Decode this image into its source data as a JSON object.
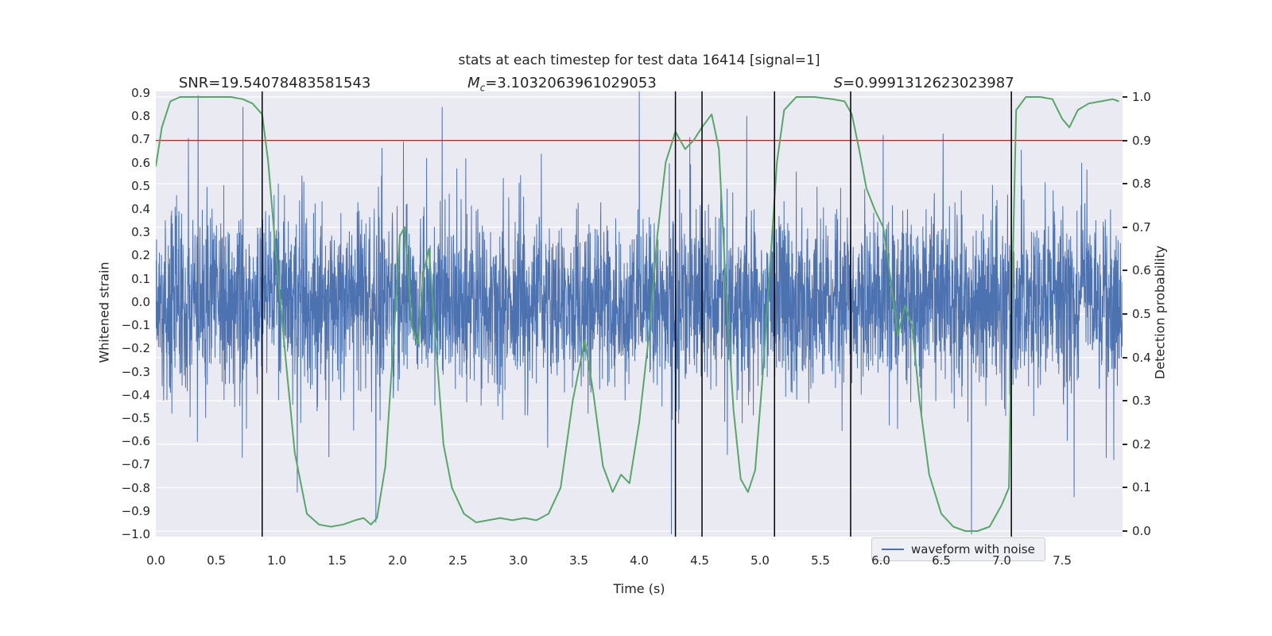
{
  "chart_data": {
    "type": "line",
    "title": "stats at each timestep for test data 16414 [signal=1]",
    "x_axis": {
      "label": "Time (s)",
      "range": [
        0,
        8
      ],
      "tick_values": [
        0,
        0.5,
        1,
        1.5,
        2,
        2.5,
        3,
        3.5,
        4,
        4.5,
        5,
        5.5,
        6,
        6.5,
        7,
        7.5
      ],
      "tick_labels": [
        "0.0",
        "0.5",
        "1.0",
        "1.5",
        "2.0",
        "2.5",
        "3.0",
        "3.5",
        "4.0",
        "4.5",
        "5.0",
        "5.5",
        "6.0",
        "6.5",
        "7.0",
        "7.5"
      ]
    },
    "left_axis": {
      "label": "Whitened strain",
      "range": [
        -1.02,
        0.92
      ],
      "tick_values": [
        0.9,
        0.8,
        0.7,
        0.6,
        0.5,
        0.4,
        0.3,
        0.2,
        0.1,
        0.0,
        -0.1,
        -0.2,
        -0.3,
        -0.4,
        -0.5,
        -0.6,
        -0.7,
        -0.8,
        -0.9,
        -1.0
      ],
      "tick_labels": [
        "0.9",
        "0.8",
        "0.7",
        "0.6",
        "0.5",
        "0.4",
        "0.3",
        "0.2",
        "0.1",
        "0.0",
        "−0.1",
        "−0.2",
        "−0.3",
        "−0.4",
        "−0.5",
        "−0.6",
        "−0.7",
        "−0.8",
        "−0.9",
        "−1.0"
      ]
    },
    "right_axis": {
      "label": "Detection probability",
      "range": [
        -0.013,
        1.013
      ],
      "tick_values": [
        1.0,
        0.9,
        0.8,
        0.7,
        0.6,
        0.5,
        0.4,
        0.3,
        0.2,
        0.1,
        0.0
      ],
      "tick_labels": [
        "1.0",
        "0.9",
        "0.8",
        "0.7",
        "0.6",
        "0.5",
        "0.4",
        "0.3",
        "0.2",
        "0.1",
        "0.0"
      ]
    },
    "annotations": [
      {
        "var": "SNR",
        "italic": false,
        "sub": "",
        "value": "=19.54078483581543",
        "t": 0.19
      },
      {
        "var": "M",
        "italic": true,
        "sub": "c",
        "value": "=3.1032063961029053",
        "t": 2.58
      },
      {
        "var": "S",
        "italic": true,
        "sub": "",
        "value": "=0.9991312623023987",
        "t": 5.61
      }
    ],
    "threshold_line": {
      "probability": 0.9,
      "color": "#b22222"
    },
    "event_lines": {
      "times": [
        0.88,
        4.3,
        4.52,
        5.12,
        5.75,
        7.08
      ],
      "color": "#000000"
    },
    "detection_series": {
      "name": "detection probability",
      "color": "#55a868",
      "points": [
        [
          0,
          0.84
        ],
        [
          0.05,
          0.93
        ],
        [
          0.12,
          0.99
        ],
        [
          0.2,
          1.0
        ],
        [
          0.35,
          1.0
        ],
        [
          0.5,
          1.0
        ],
        [
          0.62,
          1.0
        ],
        [
          0.72,
          0.995
        ],
        [
          0.8,
          0.985
        ],
        [
          0.88,
          0.96
        ],
        [
          0.93,
          0.85
        ],
        [
          1.0,
          0.62
        ],
        [
          1.08,
          0.38
        ],
        [
          1.15,
          0.18
        ],
        [
          1.25,
          0.04
        ],
        [
          1.35,
          0.015
        ],
        [
          1.45,
          0.01
        ],
        [
          1.55,
          0.015
        ],
        [
          1.65,
          0.025
        ],
        [
          1.72,
          0.03
        ],
        [
          1.78,
          0.015
        ],
        [
          1.83,
          0.03
        ],
        [
          1.9,
          0.15
        ],
        [
          1.97,
          0.45
        ],
        [
          2.02,
          0.68
        ],
        [
          2.06,
          0.7
        ],
        [
          2.12,
          0.47
        ],
        [
          2.17,
          0.43
        ],
        [
          2.22,
          0.6
        ],
        [
          2.26,
          0.65
        ],
        [
          2.32,
          0.42
        ],
        [
          2.38,
          0.2
        ],
        [
          2.45,
          0.1
        ],
        [
          2.55,
          0.04
        ],
        [
          2.65,
          0.02
        ],
        [
          2.75,
          0.025
        ],
        [
          2.85,
          0.03
        ],
        [
          2.95,
          0.025
        ],
        [
          3.05,
          0.03
        ],
        [
          3.15,
          0.025
        ],
        [
          3.25,
          0.04
        ],
        [
          3.35,
          0.1
        ],
        [
          3.45,
          0.3
        ],
        [
          3.55,
          0.44
        ],
        [
          3.62,
          0.32
        ],
        [
          3.7,
          0.15
        ],
        [
          3.78,
          0.09
        ],
        [
          3.85,
          0.13
        ],
        [
          3.92,
          0.11
        ],
        [
          4.0,
          0.25
        ],
        [
          4.08,
          0.45
        ],
        [
          4.15,
          0.68
        ],
        [
          4.22,
          0.85
        ],
        [
          4.3,
          0.92
        ],
        [
          4.38,
          0.88
        ],
        [
          4.45,
          0.9
        ],
        [
          4.52,
          0.93
        ],
        [
          4.6,
          0.96
        ],
        [
          4.66,
          0.88
        ],
        [
          4.72,
          0.55
        ],
        [
          4.78,
          0.28
        ],
        [
          4.84,
          0.12
        ],
        [
          4.9,
          0.09
        ],
        [
          4.96,
          0.14
        ],
        [
          5.02,
          0.35
        ],
        [
          5.08,
          0.6
        ],
        [
          5.14,
          0.85
        ],
        [
          5.2,
          0.97
        ],
        [
          5.3,
          1.0
        ],
        [
          5.45,
          1.0
        ],
        [
          5.6,
          0.995
        ],
        [
          5.7,
          0.99
        ],
        [
          5.76,
          0.96
        ],
        [
          5.82,
          0.88
        ],
        [
          5.88,
          0.79
        ],
        [
          5.95,
          0.74
        ],
        [
          6.02,
          0.7
        ],
        [
          6.08,
          0.58
        ],
        [
          6.14,
          0.45
        ],
        [
          6.2,
          0.52
        ],
        [
          6.26,
          0.47
        ],
        [
          6.32,
          0.3
        ],
        [
          6.4,
          0.13
        ],
        [
          6.5,
          0.04
        ],
        [
          6.6,
          0.01
        ],
        [
          6.7,
          0.0
        ],
        [
          6.8,
          0.0
        ],
        [
          6.9,
          0.01
        ],
        [
          7.0,
          0.06
        ],
        [
          7.06,
          0.1
        ],
        [
          7.09,
          0.6
        ],
        [
          7.12,
          0.97
        ],
        [
          7.2,
          1.0
        ],
        [
          7.32,
          1.0
        ],
        [
          7.42,
          0.995
        ],
        [
          7.5,
          0.95
        ],
        [
          7.56,
          0.93
        ],
        [
          7.63,
          0.97
        ],
        [
          7.72,
          0.985
        ],
        [
          7.82,
          0.99
        ],
        [
          7.92,
          0.995
        ],
        [
          7.97,
          0.99
        ]
      ]
    },
    "noise_series": {
      "name": "waveform with noise",
      "color": "#4c72b0",
      "seed": 16414,
      "samples": 4096,
      "sigma": 0.19,
      "spike_prob": 0.012,
      "spike_scale": 1.8,
      "spikes": [
        [
          0.35,
          0.89
        ],
        [
          0.72,
          0.84
        ],
        [
          1.17,
          -0.82
        ],
        [
          1.82,
          -0.95
        ],
        [
          2.05,
          0.69
        ],
        [
          2.37,
          0.84
        ],
        [
          4.0,
          0.91
        ],
        [
          4.42,
          0.71
        ],
        [
          6.02,
          0.72
        ],
        [
          6.75,
          -1.0
        ],
        [
          7.08,
          0.9
        ],
        [
          7.6,
          -0.84
        ]
      ]
    },
    "legend": {
      "label": "waveform with noise"
    },
    "colors": {
      "plot_bg": "#eaeaf2",
      "grid": "#ffffff",
      "text": "#262626"
    }
  }
}
